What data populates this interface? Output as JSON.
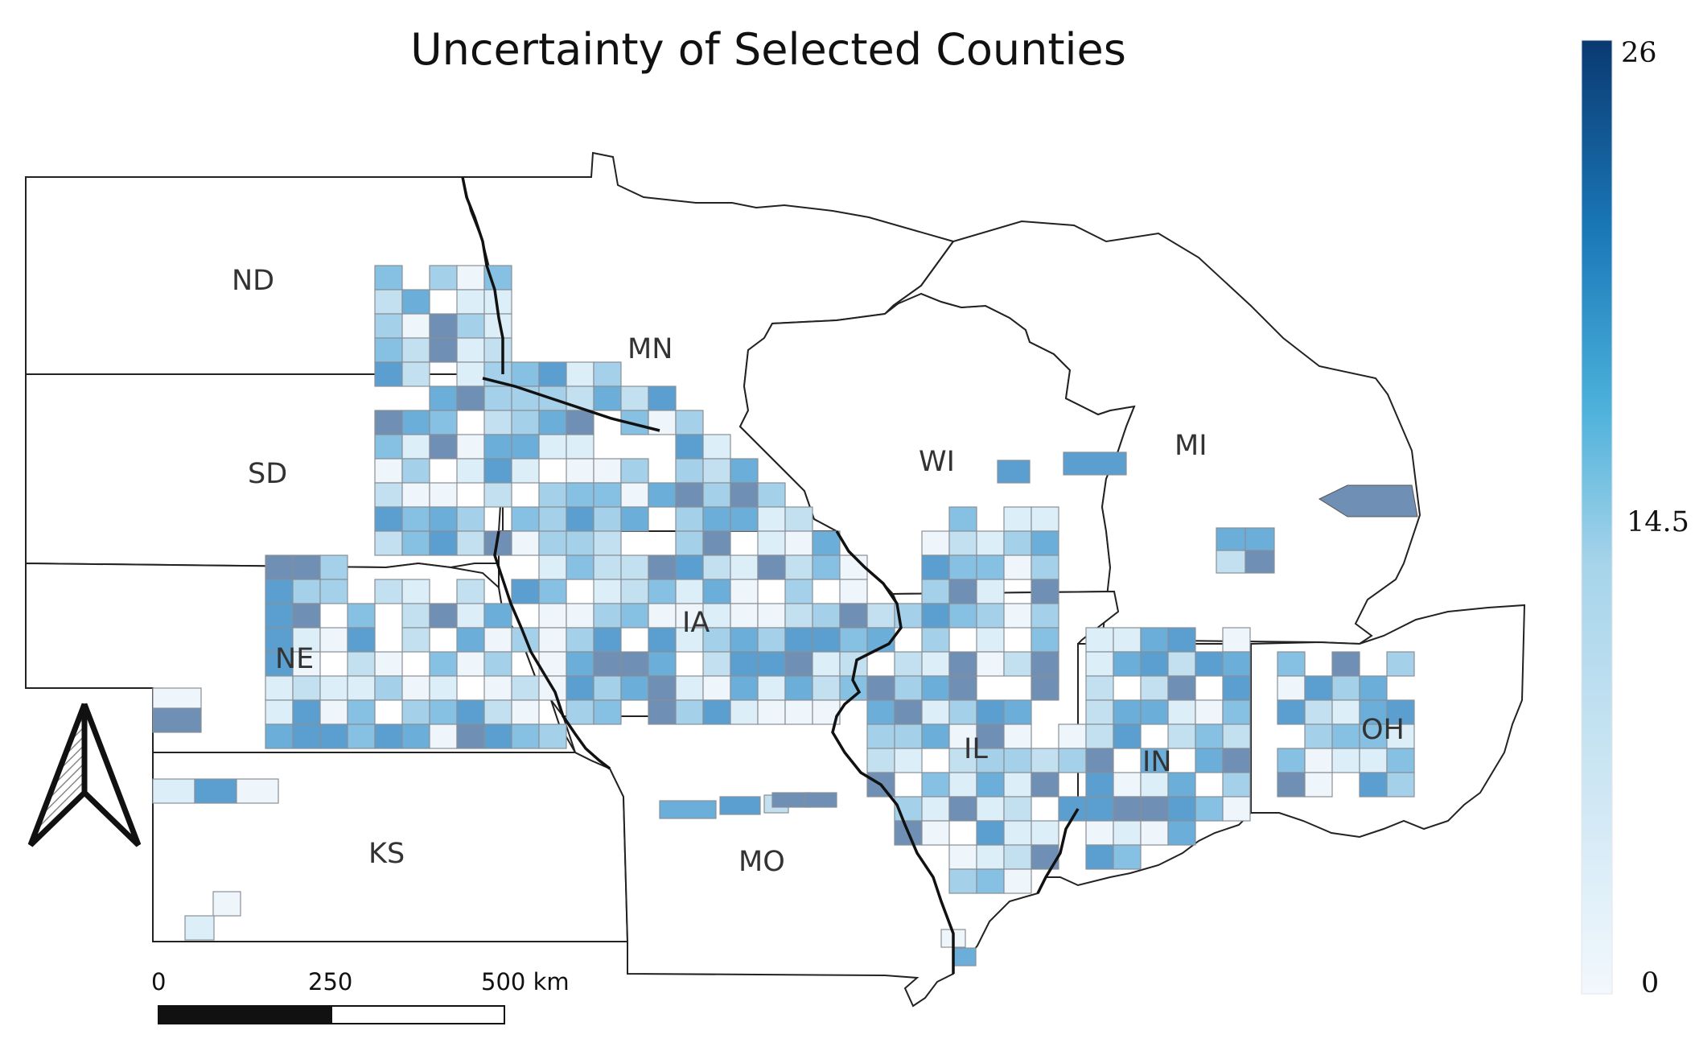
{
  "title": "Uncertainty of Selected Counties",
  "legend": {
    "max_label": "26",
    "mid_label": "14.5",
    "min_label": "0",
    "color_low": "#f2f8fd",
    "color_mid": "#4ab0da",
    "color_high": "#0a3970"
  },
  "states": {
    "ND": "ND",
    "SD": "SD",
    "NE": "NE",
    "KS": "KS",
    "MN": "MN",
    "IA": "IA",
    "MO": "MO",
    "WI": "WI",
    "IL": "IL",
    "MI": "MI",
    "IN": "IN",
    "OH": "OH"
  },
  "scale_bar": {
    "tick0": "0",
    "tick1": "250",
    "tick2": "500 km"
  },
  "north_arrow": "north-arrow-icon",
  "county_colors": [
    "#eef5fb",
    "#dceef8",
    "#c2e0f0",
    "#a4d0ea",
    "#86c0e2",
    "#6aaed9",
    "#5a9fd0",
    "#6f8fb5"
  ]
}
